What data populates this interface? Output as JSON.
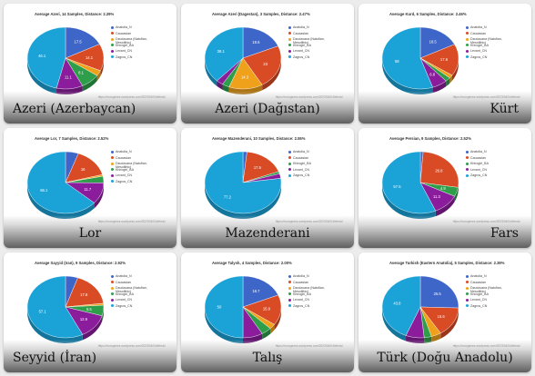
{
  "legend_colors": {
    "Anatolia_N": "#3e66c9",
    "Caucasian": "#d94b25",
    "Gedrosia": "#f0a11b",
    "Dzudzuana": "#f0a11b",
    "Khirogirl_BA": "#2e9e4a",
    "Levant_CN": "#8b1d9c",
    "Zagros_CN": "#1ba3d8",
    "Other": "#c3317a"
  },
  "chart_data": [
    {
      "type": "pie",
      "title": "Average Azeri, 14 Samples, Distance: 2.29%",
      "region_label": "Azeri (Azerbaycan)",
      "label_align": "left",
      "url": "https://eurogenes.wordpress.com/2023/04/04/ethnic/",
      "legend": [
        "Anatolia_N",
        "Caucasian",
        "Dzudzuana (Natufian, Mesolithic)",
        "Khirogirl_BA",
        "Levant_CN",
        "Zagros_CN"
      ],
      "legend_keys": [
        "Anatolia_N",
        "Caucasian",
        "Dzudzuana",
        "Khirogirl_BA",
        "Levant_CN",
        "Zagros_CN"
      ],
      "slices": [
        {
          "name": "Anatolia_N",
          "value": 17.5
        },
        {
          "name": "Caucasian",
          "value": 14.1
        },
        {
          "name": "Dzudzuana",
          "value": 2.9
        },
        {
          "name": "Khirogirl_BA",
          "value": 8.1
        },
        {
          "name": "Levant_CN",
          "value": 11.1
        },
        {
          "name": "Zagros_CN",
          "value": 46.1
        }
      ],
      "value_labels": [
        "17.5",
        "14.1",
        "8.1",
        "11.1",
        "46.1"
      ]
    },
    {
      "type": "pie",
      "title": "Average Azeri (Dagestan), 3 Samples, Distance: 2.47%",
      "region_label": "Azeri (Dağıstan)",
      "label_align": "center",
      "url": "https://eurogenes.wordpress.com/2023/04/04/ethnic/",
      "legend": [
        "Anatolia_N",
        "Caucasian",
        "Dzudzuana (Natufian, Mesolithic)",
        "Khirogirl_BA",
        "Levant_CN",
        "Zagros_CN"
      ],
      "legend_keys": [
        "Anatolia_N",
        "Caucasian",
        "Dzudzuana",
        "Khirogirl_BA",
        "Levant_CN",
        "Zagros_CN"
      ],
      "slices": [
        {
          "name": "Anatolia_N",
          "value": 18.6
        },
        {
          "name": "Caucasian",
          "value": 23
        },
        {
          "name": "Dzudzuana",
          "value": 14.3
        },
        {
          "name": "Khirogirl_BA",
          "value": 3.1
        },
        {
          "name": "Levant_CN",
          "value": 2.9
        },
        {
          "name": "Zagros_CN",
          "value": 38.1
        }
      ],
      "value_labels": [
        "18.6",
        "23",
        "14.3",
        "38.1"
      ]
    },
    {
      "type": "pie",
      "title": "Average Kurd, 6 Samples, Distance: 2.46%",
      "region_label": "Kürt",
      "label_align": "right",
      "url": "https://eurogenes.wordpress.com/2023/04/04/ethnic/",
      "legend": [
        "Anatolia_N",
        "Caucasian",
        "Dzudzuana (Natufian, Mesolithic)",
        "Khirogirl_BA",
        "Levant_CN",
        "Zagros_CN"
      ],
      "legend_keys": [
        "Anatolia_N",
        "Caucasian",
        "Dzudzuana",
        "Khirogirl_BA",
        "Levant_CN",
        "Zagros_CN"
      ],
      "slices": [
        {
          "name": "Anatolia_N",
          "value": 18.5
        },
        {
          "name": "Caucasian",
          "value": 17.6
        },
        {
          "name": "Dzudzuana",
          "value": 1.8
        },
        {
          "name": "Khirogirl_BA",
          "value": 2.3
        },
        {
          "name": "Levant_CN",
          "value": 6.8
        },
        {
          "name": "Zagros_CN",
          "value": 58
        }
      ],
      "value_labels": [
        "18.5",
        "17.6",
        "6.8",
        "58"
      ]
    },
    {
      "type": "pie",
      "title": "Average Lor, 7 Samples, Distance: 2.52%",
      "region_label": "Lor",
      "label_align": "center",
      "url": "https://eurogenes.wordpress.com/2023/04/04/ethnic/",
      "legend": [
        "Anatolia_N",
        "Caucasian",
        "Dzudzuana (Natufian, Mesolithic)",
        "Khirogirl_BA",
        "Levant_CN",
        "Zagros_CN"
      ],
      "legend_keys": [
        "Anatolia_N",
        "Caucasian",
        "Dzudzuana",
        "Khirogirl_BA",
        "Levant_CN",
        "Zagros_CN"
      ],
      "slices": [
        {
          "name": "Anatolia_N",
          "value": 5.7
        },
        {
          "name": "Caucasian",
          "value": 16
        },
        {
          "name": "Dzudzuana",
          "value": 0.9
        },
        {
          "name": "Khirogirl_BA",
          "value": 3.6
        },
        {
          "name": "Levant_CN",
          "value": 11.7
        },
        {
          "name": "Zagros_CN",
          "value": 66.1
        }
      ],
      "value_labels": [
        "16",
        "11.7",
        "66.1"
      ]
    },
    {
      "type": "pie",
      "title": "Average Mazenderani, 10 Samples, Distance: 2.55%",
      "region_label": "Mazenderani",
      "label_align": "center",
      "url": "https://eurogenes.wordpress.com/2023/04/04/ethnic/",
      "legend": [
        "Anatolia_N",
        "Caucasian",
        "Khirogirl_BA",
        "Levant_CN",
        "Zagros_CN"
      ],
      "legend_keys": [
        "Anatolia_N",
        "Caucasian",
        "Khirogirl_BA",
        "Levant_CN",
        "Zagros_CN"
      ],
      "slices": [
        {
          "name": "Anatolia_N",
          "value": 1.7
        },
        {
          "name": "Caucasian",
          "value": 17.5
        },
        {
          "name": "Khirogirl_BA",
          "value": 1.2
        },
        {
          "name": "Levant_CN",
          "value": 2.4
        },
        {
          "name": "Zagros_CN",
          "value": 77.2
        }
      ],
      "value_labels": [
        "17.5",
        "77.2"
      ]
    },
    {
      "type": "pie",
      "title": "Average Persian, 9 Samples, Distance: 2.52%",
      "region_label": "Fars",
      "label_align": "right",
      "url": "https://eurogenes.wordpress.com/2023/04/04/ethnic/",
      "legend": [
        "Anatolia_N",
        "Caucasian",
        "Khirogirl_BA",
        "Levant_CN",
        "Zagros_CN"
      ],
      "legend_keys": [
        "Anatolia_N",
        "Caucasian",
        "Khirogirl_BA",
        "Levant_CN",
        "Zagros_CN"
      ],
      "slices": [
        {
          "name": "Anatolia_N",
          "value": 1.2
        },
        {
          "name": "Caucasian",
          "value": 26.8
        },
        {
          "name": "Khirogirl_BA",
          "value": 4.9
        },
        {
          "name": "Levant_CN",
          "value": 11.3
        },
        {
          "name": "Zagros_CN",
          "value": 57.5
        }
      ],
      "value_labels": [
        "26.8",
        "4.9",
        "11.3",
        "57.5"
      ]
    },
    {
      "type": "pie",
      "title": "Average Sayyid (Iran), 9 Samples, Distance: 2.92%",
      "region_label": "Seyyid (İran)",
      "label_align": "left",
      "url": "https://eurogenes.wordpress.com/2023/04/04/ethnic/",
      "legend": [
        "Anatolia_N",
        "Caucasian",
        "Dzudzuana (Natufian, Mesolithic)",
        "Khirogirl_BA",
        "Levant_CN",
        "Zagros_CN"
      ],
      "legend_keys": [
        "Anatolia_N",
        "Caucasian",
        "Dzudzuana",
        "Khirogirl_BA",
        "Levant_CN",
        "Zagros_CN"
      ],
      "slices": [
        {
          "name": "Anatolia_N",
          "value": 5.2
        },
        {
          "name": "Caucasian",
          "value": 17.8
        },
        {
          "name": "Dzudzuana",
          "value": 1
        },
        {
          "name": "Khirogirl_BA",
          "value": 5.5
        },
        {
          "name": "Levant_CN",
          "value": 12.9
        },
        {
          "name": "Zagros_CN",
          "value": 57.1
        }
      ],
      "value_labels": [
        "17.8",
        "5.5",
        "12.9",
        "57.1"
      ]
    },
    {
      "type": "pie",
      "title": "Average Talysh, 4 Samples, Distance: 2.00%",
      "region_label": "Talış",
      "label_align": "center",
      "url": "https://eurogenes.wordpress.com/2023/04/04/ethnic/",
      "legend": [
        "Anatolia_N",
        "Caucasian",
        "Dzudzuana (Natufian, Mesolithic)",
        "Khirogirl_BA",
        "Levant_CN",
        "Zagros_CN"
      ],
      "legend_keys": [
        "Anatolia_N",
        "Caucasian",
        "Dzudzuana",
        "Khirogirl_BA",
        "Levant_CN",
        "Zagros_CN"
      ],
      "slices": [
        {
          "name": "Anatolia_N",
          "value": 18.7
        },
        {
          "name": "Caucasian",
          "value": 15.9
        },
        {
          "name": "Dzudzuana",
          "value": 2.7
        },
        {
          "name": "Khirogirl_BA",
          "value": 4.3
        },
        {
          "name": "Levant_CN",
          "value": 8.4
        },
        {
          "name": "Zagros_CN",
          "value": 50
        }
      ],
      "value_labels": [
        "18.7",
        "15.9",
        "50"
      ]
    },
    {
      "type": "pie",
      "title": "Average Turkish (Eastern Anatolia), 5 Samples, Distance: 2.39%",
      "region_label": "Türk (Doğu Anadolu)",
      "label_align": "center",
      "url": "https://eurogenes.wordpress.com/2023/04/04/ethnic/",
      "legend": [
        "Anatolia_N",
        "Caucasian",
        "Dzudzuana (Natufian, Mesolithic)",
        "Khirogirl_BA",
        "Levant_CN",
        "Zagros_CN"
      ],
      "legend_keys": [
        "Anatolia_N",
        "Caucasian",
        "Dzudzuana",
        "Khirogirl_BA",
        "Levant_CN",
        "Zagros_CN"
      ],
      "slices": [
        {
          "name": "Anatolia_N",
          "value": 25.5
        },
        {
          "name": "Caucasian",
          "value": 15.6
        },
        {
          "name": "Dzudzuana",
          "value": 4.2
        },
        {
          "name": "Khirogirl_BA",
          "value": 3.1
        },
        {
          "name": "Levant_CN",
          "value": 7.8
        },
        {
          "name": "Zagros_CN",
          "value": 43.8
        }
      ],
      "value_labels": [
        "25.5",
        "15.6",
        "43.8"
      ]
    }
  ]
}
